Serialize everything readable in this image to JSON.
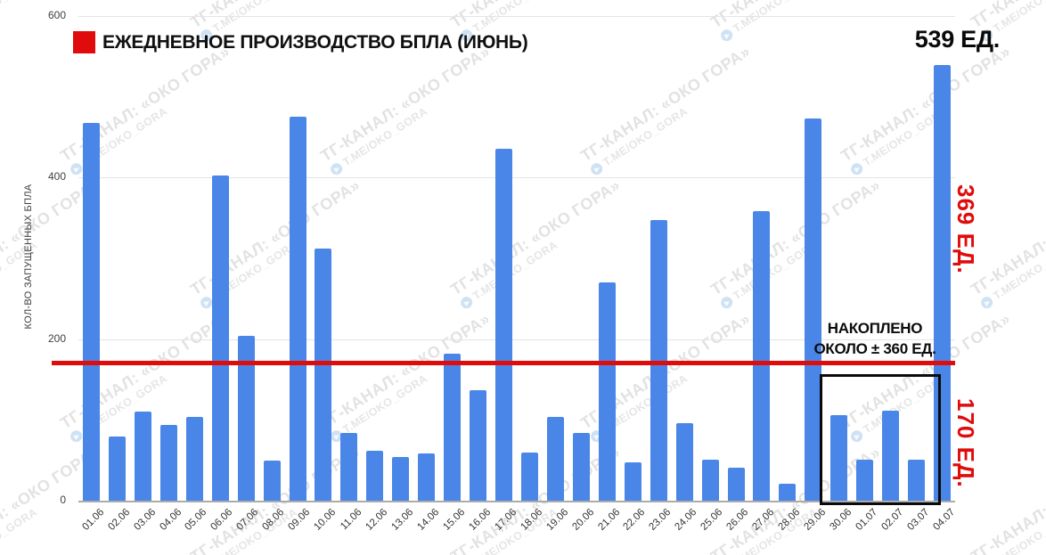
{
  "legend": {
    "label": "ЕЖЕДНЕВНОЕ ПРОИЗВОДСТВО БПЛА (ИЮНЬ)",
    "swatch_color": "#e00b0b"
  },
  "labels": {
    "top_right": "539 ЕД.",
    "right_upper": "369 ЕД.",
    "right_lower": "170 ЕД."
  },
  "annotation": {
    "line1": "НАКОПЛЕНО",
    "line2": "ОКОЛО ± 360 ЕД."
  },
  "watermark": {
    "line1": "ТГ-КАНАЛ: «ОКО ГОРА»",
    "line2": "T.ME/OKO_GORA"
  },
  "colors": {
    "bar": "#4a86e8",
    "accent_red": "#e00b0b",
    "grid": "#e4e4e4",
    "baseline": "#ababab",
    "text": "#3d3d3d",
    "highlight_box_border": "#0a0a0a"
  },
  "chart_data": {
    "type": "bar",
    "title": "ЕЖЕДНЕВНОЕ ПРОИЗВОДСТВО БПЛА (ИЮНЬ)",
    "xlabel": "",
    "ylabel": "КОЛ-ВО ЗАПУЩЕННЫХ БПЛА",
    "ylim": [
      0,
      600
    ],
    "yticks": [
      0,
      200,
      400,
      600
    ],
    "grid": true,
    "legend_position": "top-left",
    "categories": [
      "01.06",
      "02.06",
      "03.06",
      "04.06",
      "05.06",
      "06.06",
      "07.06",
      "08.06",
      "09.06",
      "10.06",
      "11.06",
      "12.06",
      "13.06",
      "14.06",
      "15.06",
      "16.06",
      "17.06",
      "18.06",
      "19.06",
      "20.06",
      "21.06",
      "22.06",
      "23.06",
      "24.06",
      "25.06",
      "26.06",
      "27.06",
      "28.06",
      "29.06",
      "30.06",
      "01.07",
      "02.07",
      "03.07",
      "04.07"
    ],
    "series": [
      {
        "name": "ЕЖЕДНЕВНОЕ ПРОИЗВОДСТВО БПЛА (ИЮНЬ)",
        "values": [
          468,
          80,
          110,
          94,
          104,
          403,
          204,
          50,
          475,
          312,
          84,
          62,
          54,
          58,
          182,
          137,
          436,
          60,
          104,
          84,
          270,
          48,
          348,
          96,
          51,
          41,
          359,
          21,
          473,
          106,
          51,
          112,
          51,
          539
        ]
      }
    ],
    "reference_line": {
      "value": 170,
      "color": "#e00b0b",
      "label": "170 ЕД."
    },
    "highlight_box": {
      "from_category": "30.06",
      "to_category": "03.07",
      "label": "НАКОПЛЕНО ОКОЛО ± 360 ЕД."
    },
    "annotations": [
      {
        "text": "539 ЕД.",
        "refers_to": "04.07",
        "position": "top-right",
        "color": "#0a0a0a"
      },
      {
        "text": "369 ЕД.",
        "position": "right-upper",
        "color": "#e00b0b"
      },
      {
        "text": "170 ЕД.",
        "position": "right-lower",
        "color": "#e00b0b"
      },
      {
        "text": "НАКОПЛЕНО ОКОЛО ± 360 ЕД.",
        "refers_to": "30.06–03.07",
        "position": "above-highlight-box",
        "color": "#0c0c0c"
      }
    ]
  }
}
